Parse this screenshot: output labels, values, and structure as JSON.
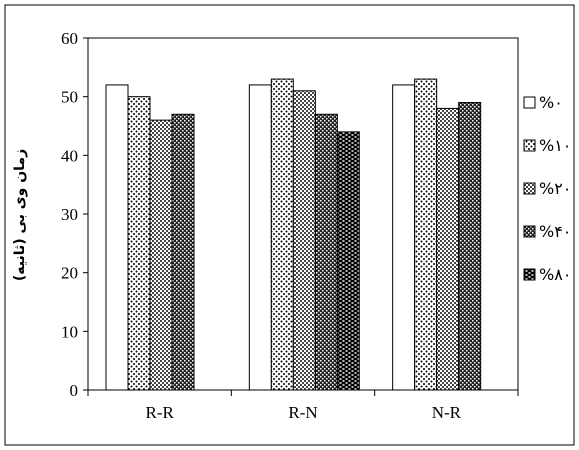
{
  "chart_data": {
    "type": "bar",
    "title": "",
    "xlabel": "",
    "ylabel": "زمان وی بی (ثانیه)",
    "ylim": [
      0,
      60
    ],
    "yticks": [
      0,
      10,
      20,
      30,
      40,
      50,
      60
    ],
    "grid": false,
    "legend_position": "right",
    "categories": [
      "R-R",
      "R-N",
      "N-R"
    ],
    "series": [
      {
        "name": "%۰",
        "pattern": "blank",
        "values": [
          52,
          52,
          52
        ]
      },
      {
        "name": "%۱۰",
        "pattern": "dots-light",
        "values": [
          50,
          53,
          53
        ]
      },
      {
        "name": "%۲۰",
        "pattern": "checker",
        "values": [
          46,
          51,
          48
        ]
      },
      {
        "name": "%۴۰",
        "pattern": "checker-dark",
        "values": [
          47,
          47,
          49
        ]
      },
      {
        "name": "%۸۰",
        "pattern": "dots-dark",
        "values": [
          null,
          44,
          null
        ]
      }
    ]
  }
}
